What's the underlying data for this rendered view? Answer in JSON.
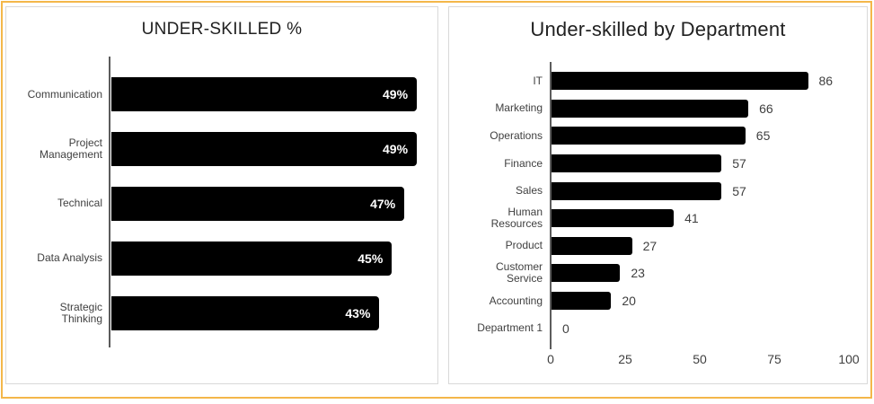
{
  "style": {
    "slide_border_color": "#F4B74A",
    "card_border_color": "#D9D9D9",
    "bar_color": "#000000",
    "title_color": "#212121",
    "label_color": "#3F3F3F",
    "axis_color": "#5C5C5C",
    "value_inside_color": "#FFFFFF"
  },
  "chart_data": [
    {
      "type": "bar",
      "orientation": "horizontal",
      "title": "UNDER-SKILLED %",
      "categories": [
        "Communication",
        "Project\nManagement",
        "Technical",
        "Data Analysis",
        "Strategic\nThinking"
      ],
      "values": [
        49,
        49,
        47,
        45,
        43
      ],
      "value_labels": [
        "49%",
        "49%",
        "47%",
        "45%",
        "43%"
      ],
      "xlim": [
        0,
        50
      ],
      "grid": false,
      "legend": "none",
      "value_label_position": "inside-end",
      "x_ticks": []
    },
    {
      "type": "bar",
      "orientation": "horizontal",
      "title": "Under-skilled by Department",
      "categories": [
        "IT",
        "Marketing",
        "Operations",
        "Finance",
        "Sales",
        "Human\nResources",
        "Product",
        "Customer\nService",
        "Accounting",
        "Department 1"
      ],
      "values": [
        86,
        66,
        65,
        57,
        57,
        41,
        27,
        23,
        20,
        0
      ],
      "value_labels": [
        "86",
        "66",
        "65",
        "57",
        "57",
        "41",
        "27",
        "23",
        "20",
        "0"
      ],
      "xlim": [
        0,
        100
      ],
      "grid": false,
      "legend": "none",
      "value_label_position": "outside-end",
      "x_ticks": [
        0,
        25,
        50,
        75,
        100
      ]
    }
  ]
}
